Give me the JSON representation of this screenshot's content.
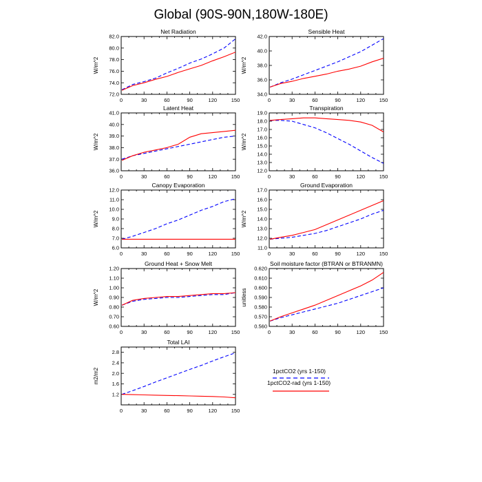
{
  "figure": {
    "title": "Global (90S-90N,180W-180E)"
  },
  "legend": {
    "entries": [
      {
        "label": "1pctCO2 (yrs 1-150)",
        "color": "#0000ff",
        "style": "dashed"
      },
      {
        "label": "1pctCO2-rad (yrs 1-150)",
        "color": "#ff0000",
        "style": "solid"
      }
    ]
  },
  "colors": {
    "series_1pctCO2": "#0000ff",
    "series_1pctCO2_rad": "#ff0000"
  },
  "chart_data": [
    {
      "type": "line",
      "title": "Net Radiation",
      "ylabel": "W/m^2",
      "xlim": [
        0,
        150
      ],
      "ylim": [
        72.0,
        82.0
      ],
      "xticks": [
        0,
        30,
        60,
        90,
        120,
        150
      ],
      "yticks": [
        72.0,
        74.0,
        76.0,
        78.0,
        80.0,
        82.0
      ],
      "ytick_labels": [
        "72.0",
        "74.0",
        "76.0",
        "78.0",
        "80.0",
        "82.0"
      ],
      "grid": false,
      "series": [
        {
          "key": "1pctCO2",
          "x": [
            1,
            15,
            30,
            45,
            60,
            75,
            90,
            105,
            120,
            135,
            150
          ],
          "y": [
            72.8,
            73.7,
            74.2,
            74.8,
            75.7,
            76.5,
            77.4,
            78.1,
            79.0,
            80.0,
            81.6
          ]
        },
        {
          "key": "1pctCO2-rad",
          "x": [
            1,
            15,
            30,
            45,
            60,
            75,
            90,
            105,
            120,
            135,
            150
          ],
          "y": [
            72.7,
            73.5,
            74.0,
            74.6,
            75.1,
            75.8,
            76.4,
            77.0,
            77.8,
            78.5,
            79.3
          ]
        }
      ]
    },
    {
      "type": "line",
      "title": "Sensible Heat",
      "ylabel": "W/m^2",
      "xlim": [
        0,
        150
      ],
      "ylim": [
        34.0,
        42.0
      ],
      "xticks": [
        0,
        30,
        60,
        90,
        120,
        150
      ],
      "yticks": [
        34.0,
        36.0,
        38.0,
        40.0,
        42.0
      ],
      "ytick_labels": [
        "34.0",
        "36.0",
        "38.0",
        "40.0",
        "42.0"
      ],
      "grid": false,
      "series": [
        {
          "key": "1pctCO2",
          "x": [
            1,
            15,
            30,
            45,
            60,
            75,
            90,
            105,
            120,
            135,
            150
          ],
          "y": [
            35.0,
            35.6,
            36.1,
            36.7,
            37.3,
            37.9,
            38.5,
            39.2,
            39.9,
            40.8,
            41.7
          ]
        },
        {
          "key": "1pctCO2-rad",
          "x": [
            1,
            15,
            30,
            45,
            60,
            75,
            90,
            105,
            120,
            135,
            150
          ],
          "y": [
            35.0,
            35.5,
            35.8,
            36.2,
            36.5,
            36.8,
            37.2,
            37.5,
            37.9,
            38.5,
            39.0
          ]
        }
      ]
    },
    {
      "type": "line",
      "title": "Latent Heat",
      "ylabel": "W/m^2",
      "xlim": [
        0,
        150
      ],
      "ylim": [
        36.0,
        41.0
      ],
      "xticks": [
        0,
        30,
        60,
        90,
        120,
        150
      ],
      "yticks": [
        36.0,
        37.0,
        38.0,
        39.0,
        40.0,
        41.0
      ],
      "ytick_labels": [
        "36.0",
        "37.0",
        "38.0",
        "39.0",
        "40.0",
        "41.0"
      ],
      "grid": false,
      "series": [
        {
          "key": "1pctCO2",
          "x": [
            1,
            15,
            30,
            45,
            60,
            75,
            90,
            105,
            120,
            135,
            150
          ],
          "y": [
            37.0,
            37.3,
            37.5,
            37.7,
            37.9,
            38.1,
            38.3,
            38.5,
            38.7,
            38.9,
            39.0
          ]
        },
        {
          "key": "1pctCO2-rad",
          "x": [
            1,
            15,
            30,
            45,
            60,
            75,
            90,
            105,
            120,
            135,
            150
          ],
          "y": [
            36.9,
            37.3,
            37.6,
            37.8,
            38.0,
            38.3,
            38.9,
            39.2,
            39.3,
            39.4,
            39.5
          ]
        }
      ]
    },
    {
      "type": "line",
      "title": "Transpiration",
      "ylabel": "W/m^2",
      "xlim": [
        0,
        150
      ],
      "ylim": [
        12.0,
        19.0
      ],
      "xticks": [
        0,
        30,
        60,
        90,
        120,
        150
      ],
      "yticks": [
        12.0,
        13.0,
        14.0,
        15.0,
        16.0,
        17.0,
        18.0,
        19.0
      ],
      "ytick_labels": [
        "12.0",
        "13.0",
        "14.0",
        "15.0",
        "16.0",
        "17.0",
        "18.0",
        "19.0"
      ],
      "grid": false,
      "series": [
        {
          "key": "1pctCO2",
          "x": [
            1,
            15,
            30,
            45,
            60,
            75,
            90,
            105,
            120,
            135,
            150
          ],
          "y": [
            18.1,
            18.1,
            18.0,
            17.6,
            17.2,
            16.6,
            15.9,
            15.2,
            14.4,
            13.6,
            12.9
          ]
        },
        {
          "key": "1pctCO2-rad",
          "x": [
            1,
            15,
            30,
            45,
            60,
            75,
            90,
            105,
            120,
            135,
            150
          ],
          "y": [
            18.1,
            18.2,
            18.3,
            18.4,
            18.4,
            18.3,
            18.2,
            18.1,
            17.9,
            17.5,
            16.7
          ]
        }
      ]
    },
    {
      "type": "line",
      "title": "Canopy Evaporation",
      "ylabel": "W/m^2",
      "xlim": [
        0,
        150
      ],
      "ylim": [
        6.0,
        12.0
      ],
      "xticks": [
        0,
        30,
        60,
        90,
        120,
        150
      ],
      "yticks": [
        6.0,
        7.0,
        8.0,
        9.0,
        10.0,
        11.0,
        12.0
      ],
      "ytick_labels": [
        "6.0",
        "7.0",
        "8.0",
        "9.0",
        "10.0",
        "11.0",
        "12.0"
      ],
      "grid": false,
      "series": [
        {
          "key": "1pctCO2",
          "x": [
            1,
            15,
            30,
            45,
            60,
            75,
            90,
            105,
            120,
            135,
            150
          ],
          "y": [
            6.9,
            7.2,
            7.6,
            8.0,
            8.5,
            8.9,
            9.4,
            9.9,
            10.3,
            10.8,
            11.1
          ]
        },
        {
          "key": "1pctCO2-rad",
          "x": [
            1,
            15,
            30,
            45,
            60,
            75,
            90,
            105,
            120,
            135,
            150
          ],
          "y": [
            6.9,
            6.9,
            6.9,
            6.9,
            6.9,
            6.9,
            6.9,
            6.9,
            6.9,
            6.9,
            6.9
          ]
        }
      ]
    },
    {
      "type": "line",
      "title": "Ground Evaporation",
      "ylabel": "W/m^2",
      "xlim": [
        0,
        150
      ],
      "ylim": [
        11.0,
        17.0
      ],
      "xticks": [
        0,
        30,
        60,
        90,
        120,
        150
      ],
      "yticks": [
        11.0,
        12.0,
        13.0,
        14.0,
        15.0,
        16.0,
        17.0
      ],
      "ytick_labels": [
        "11.0",
        "12.0",
        "13.0",
        "14.0",
        "15.0",
        "16.0",
        "17.0"
      ],
      "grid": false,
      "series": [
        {
          "key": "1pctCO2",
          "x": [
            1,
            15,
            30,
            45,
            60,
            75,
            90,
            105,
            120,
            135,
            150
          ],
          "y": [
            11.9,
            12.0,
            12.1,
            12.3,
            12.5,
            12.8,
            13.2,
            13.6,
            14.0,
            14.5,
            14.9
          ]
        },
        {
          "key": "1pctCO2-rad",
          "x": [
            1,
            15,
            30,
            45,
            60,
            75,
            90,
            105,
            120,
            135,
            150
          ],
          "y": [
            11.9,
            12.1,
            12.3,
            12.6,
            12.9,
            13.4,
            13.9,
            14.4,
            14.9,
            15.4,
            15.9
          ]
        }
      ]
    },
    {
      "type": "line",
      "title": "Ground Heat + Snow Melt",
      "ylabel": "W/m^2",
      "xlim": [
        0,
        150
      ],
      "ylim": [
        0.6,
        1.2
      ],
      "xticks": [
        0,
        30,
        60,
        90,
        120,
        150
      ],
      "yticks": [
        0.6,
        0.7,
        0.8,
        0.9,
        1.0,
        1.1,
        1.2
      ],
      "ytick_labels": [
        "0.60",
        "0.70",
        "0.80",
        "0.90",
        "1.00",
        "1.10",
        "1.20"
      ],
      "grid": false,
      "series": [
        {
          "key": "1pctCO2",
          "x": [
            1,
            15,
            30,
            45,
            60,
            75,
            90,
            105,
            120,
            135,
            150
          ],
          "y": [
            0.82,
            0.86,
            0.88,
            0.89,
            0.9,
            0.9,
            0.91,
            0.92,
            0.93,
            0.93,
            0.95
          ]
        },
        {
          "key": "1pctCO2-rad",
          "x": [
            1,
            15,
            30,
            45,
            60,
            75,
            90,
            105,
            120,
            135,
            150
          ],
          "y": [
            0.82,
            0.87,
            0.89,
            0.9,
            0.91,
            0.91,
            0.92,
            0.93,
            0.94,
            0.94,
            0.95
          ]
        }
      ]
    },
    {
      "type": "line",
      "title": "Soil moisture factor (BTRAN or BTRANMN)",
      "ylabel": "unitless",
      "xlim": [
        0,
        150
      ],
      "ylim": [
        0.56,
        0.62
      ],
      "xticks": [
        0,
        30,
        60,
        90,
        120,
        150
      ],
      "yticks": [
        0.56,
        0.57,
        0.58,
        0.59,
        0.6,
        0.61,
        0.62
      ],
      "ytick_labels": [
        "0.560",
        "0.570",
        "0.580",
        "0.590",
        "0.600",
        "0.610",
        "0.620"
      ],
      "grid": false,
      "series": [
        {
          "key": "1pctCO2",
          "x": [
            1,
            15,
            30,
            45,
            60,
            75,
            90,
            105,
            120,
            135,
            150
          ],
          "y": [
            0.5655,
            0.569,
            0.572,
            0.575,
            0.578,
            0.581,
            0.584,
            0.588,
            0.592,
            0.596,
            0.6
          ]
        },
        {
          "key": "1pctCO2-rad",
          "x": [
            1,
            15,
            30,
            45,
            60,
            75,
            90,
            105,
            120,
            135,
            150
          ],
          "y": [
            0.5655,
            0.57,
            0.574,
            0.578,
            0.582,
            0.587,
            0.592,
            0.597,
            0.602,
            0.608,
            0.616
          ]
        }
      ]
    },
    {
      "type": "line",
      "title": "Total LAI",
      "ylabel": "m2/m2",
      "xlim": [
        0,
        150
      ],
      "ylim": [
        0.8,
        3.0
      ],
      "xticks": [
        0,
        30,
        60,
        90,
        120,
        150
      ],
      "yticks": [
        1.2,
        1.6,
        2.0,
        2.4,
        2.8
      ],
      "ytick_labels": [
        "1.2",
        "1.6",
        "2.0",
        "2.4",
        "2.8"
      ],
      "grid": false,
      "series": [
        {
          "key": "1pctCO2",
          "x": [
            1,
            15,
            30,
            45,
            60,
            75,
            90,
            105,
            120,
            135,
            150
          ],
          "y": [
            1.2,
            1.34,
            1.5,
            1.67,
            1.83,
            1.99,
            2.15,
            2.3,
            2.47,
            2.63,
            2.78
          ]
        },
        {
          "key": "1pctCO2-rad",
          "x": [
            1,
            15,
            30,
            45,
            60,
            75,
            90,
            105,
            120,
            135,
            150
          ],
          "y": [
            1.2,
            1.19,
            1.18,
            1.17,
            1.16,
            1.15,
            1.14,
            1.13,
            1.12,
            1.1,
            1.07
          ]
        }
      ]
    }
  ]
}
